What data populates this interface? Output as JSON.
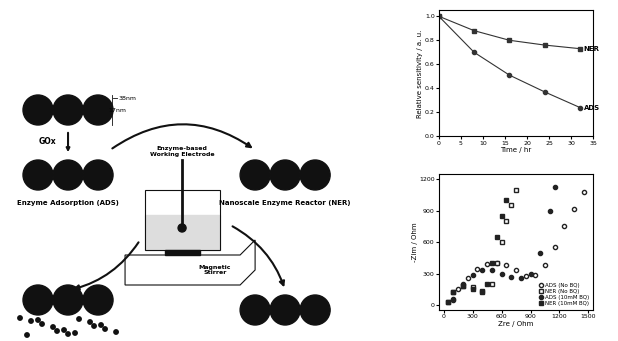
{
  "diagram": {
    "pore_labels": [
      "17nm",
      "38nm"
    ],
    "enzyme": "GOx",
    "left_label": "Enzyme Adsorption (ADS)",
    "right_label": "Nanoscale Enzyme Reactor (NER)",
    "electrode": "Enzyme-based\nWorking Electrode",
    "stirrer": "Magnetic\nStirrer"
  },
  "chart_data": [
    {
      "type": "line",
      "xlabel": "Time / hr",
      "ylabel": "Relative sensitivity / a. u.",
      "xlim": [
        0,
        35
      ],
      "xticks": [
        0,
        5,
        10,
        15,
        20,
        25,
        30,
        35
      ],
      "ylim": [
        0,
        1.05
      ],
      "yticks": [
        {
          "value": 0,
          "label": "0.0"
        },
        0.2,
        0.4,
        0.6,
        0.8,
        {
          "value": 1,
          "label": "1.0"
        }
      ],
      "x": [
        0,
        8,
        16,
        24,
        32
      ],
      "series": [
        {
          "name": "NER",
          "color": "#333333",
          "marker": "filled square",
          "line_style": "solid",
          "values": [
            1.0,
            0.88,
            0.8,
            0.76,
            0.73
          ]
        },
        {
          "name": "ADS",
          "color": "#333333",
          "marker": "filled circle",
          "line_style": "solid",
          "values": [
            1.0,
            0.7,
            0.51,
            0.37,
            0.24
          ]
        }
      ]
    },
    {
      "type": "scatter",
      "xlabel": "Zre / Ohm",
      "ylabel": "-Zim / Ohm",
      "xlim": [
        -50,
        1550
      ],
      "xticks": [
        0,
        300,
        600,
        900,
        1200,
        1500
      ],
      "ylim": [
        -50,
        1250
      ],
      "yticks": [
        0,
        300,
        600,
        900,
        1200
      ],
      "legend": "lower right",
      "series": [
        {
          "name": "ADS (No BQ)",
          "color": "#222222",
          "marker": "open circle",
          "line_style": "none",
          "x": [
            100,
            150,
            250,
            350,
            450,
            550,
            650,
            750,
            850,
            950,
            1050,
            1150,
            1250,
            1350,
            1450
          ],
          "values": [
            50,
            150,
            260,
            340,
            390,
            400,
            380,
            330,
            280,
            290,
            380,
            550,
            750,
            920,
            1080
          ]
        },
        {
          "name": "NER (No BQ)",
          "color": "#222222",
          "marker": "open square",
          "line_style": "none",
          "x": [
            50,
            100,
            200,
            300,
            400,
            500,
            550,
            600,
            650,
            700,
            750
          ],
          "values": [
            30,
            120,
            180,
            170,
            130,
            200,
            400,
            600,
            800,
            950,
            1100
          ]
        },
        {
          "name": "ADS (10mM BQ)",
          "color": "#222222",
          "marker": "filled circle",
          "line_style": "none",
          "x": [
            100,
            200,
            300,
            400,
            500,
            600,
            700,
            800,
            900,
            1000,
            1100,
            1150
          ],
          "values": [
            60,
            200,
            290,
            330,
            330,
            300,
            270,
            260,
            300,
            500,
            900,
            1130
          ]
        },
        {
          "name": "NER (10mM BQ)",
          "color": "#222222",
          "marker": "filled square",
          "line_style": "none",
          "x": [
            50,
            100,
            200,
            300,
            400,
            450,
            500,
            550,
            600,
            650
          ],
          "values": [
            30,
            120,
            180,
            150,
            120,
            200,
            400,
            650,
            850,
            1000
          ]
        }
      ]
    }
  ]
}
